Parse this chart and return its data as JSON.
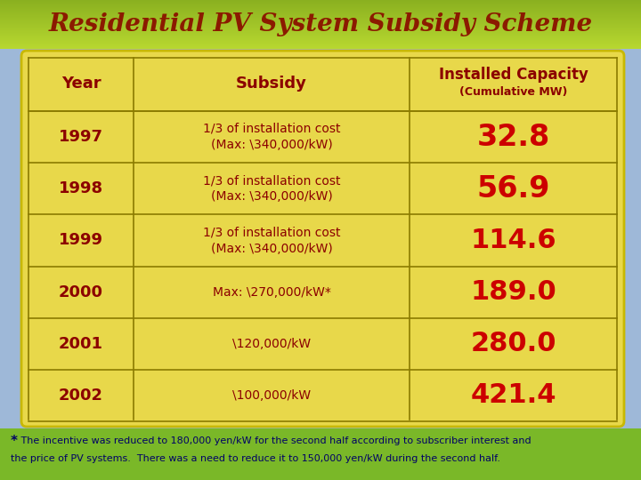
{
  "title": "Residential PV System Subsidy Scheme",
  "title_color": "#8B1A00",
  "title_fontsize": 20,
  "bg_outer_top": "#a8c840",
  "bg_outer_bottom": "#8ab830",
  "bg_body": "#9eb8d8",
  "bg_table": "#E8D84A",
  "line_color": "#8B7B00",
  "text_color_year": "#8B0000",
  "text_color_subsidy": "#8B0000",
  "text_color_capacity": "#CC0000",
  "header_text_color": "#8B0000",
  "years": [
    "1997",
    "1998",
    "1999",
    "2000",
    "2001",
    "2002"
  ],
  "subsidies": [
    "1/3 of installation cost\n(Max: \\340,000/kW)",
    "1/3 of installation cost\n(Max: \\340,000/kW)",
    "1/3 of installation cost\n(Max: \\340,000/kW)",
    "Max: \\270,000/kW*",
    "\\120,000/kW",
    "\\100,000/kW"
  ],
  "capacities": [
    "32.8",
    "56.9",
    "114.6",
    "189.0",
    "280.0",
    "421.4"
  ],
  "footnote_star": "*",
  "footnote_line1": " The incentive was reduced to 180,000 yen/kW for the second half according to subscriber interest and",
  "footnote_line2": "the price of PV systems.  There was a need to reduce it to 150,000 yen/kW during the second half.",
  "footnote_color": "#000066",
  "footnote_fontsize": 8.0,
  "bg_footnote": "#7ab828"
}
